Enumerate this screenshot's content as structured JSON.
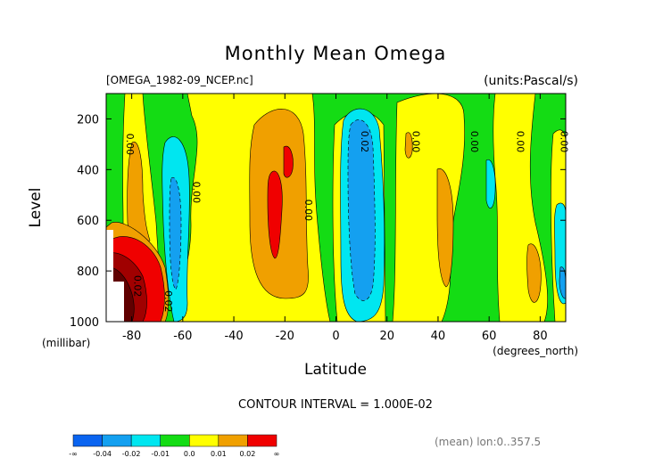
{
  "chart_data": {
    "type": "heatmap",
    "title": "Monthly Mean Omega",
    "file_label": "[OMEGA_1982-09_NCEP.nc]",
    "units_label": "(units:Pascal/s)",
    "xlabel": "Latitude",
    "x_unit": "(degrees_north)",
    "ylabel": "Level",
    "y_unit": "(millibar)",
    "xlim": [
      -90,
      90
    ],
    "ylim": [
      1000,
      100
    ],
    "x_ticks": [
      "-80",
      "-60",
      "-40",
      "-20",
      "0",
      "20",
      "40",
      "60",
      "80"
    ],
    "y_ticks": [
      "200",
      "400",
      "600",
      "800",
      "1000"
    ],
    "contour_interval": "CONTOUR INTERVAL = 1.000E-02",
    "contour_labels": [
      "0.00",
      "0.00",
      "0.00",
      "0.02",
      "0.00",
      "0.00",
      "0.00",
      "0.00",
      "0.02",
      "0.02"
    ],
    "footer_note": "(mean) lon:0..357.5",
    "colorbar": {
      "labels": [
        "-∞",
        "-0.04",
        "-0.02",
        "-0.01",
        "0.0",
        "0.01",
        "0.02",
        "∞"
      ],
      "colors": [
        "#0a64f0",
        "#14a0f0",
        "#00e6f0",
        "#14dc14",
        "#ffff00",
        "#f0a000",
        "#f00000"
      ]
    },
    "approx_features": [
      {
        "lat": -85,
        "level_top": 600,
        "level_bottom": 1000,
        "value_range": ">0.03"
      },
      {
        "lat": -75,
        "level_top": 650,
        "level_bottom": 1000,
        "value_range": "0.02 to 0.03"
      },
      {
        "lat": -62,
        "level_top": 180,
        "level_bottom": 1000,
        "value_range": "-0.02 to -0.01"
      },
      {
        "lat": -25,
        "level_top": 150,
        "level_bottom": 940,
        "value_range": "0.01 to 0.02"
      },
      {
        "lat": 12,
        "level_top": 140,
        "level_bottom": 1000,
        "value_range": "-0.04 to -0.01"
      },
      {
        "lat": 82,
        "level_top": 650,
        "level_bottom": 950,
        "value_range": "0.01 to 0.02"
      }
    ]
  }
}
